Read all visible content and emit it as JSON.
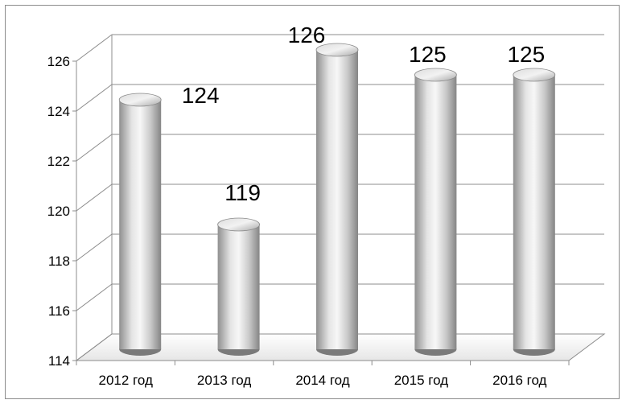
{
  "chart_data": {
    "type": "bar",
    "style": "3d-cylinder",
    "categories": [
      "2012 год",
      "2013 год",
      "2014 год",
      "2015 год",
      "2016 год"
    ],
    "values": [
      124,
      119,
      126,
      125,
      125
    ],
    "data_labels": [
      "124",
      "119",
      "126",
      "125",
      "125"
    ],
    "ylim": [
      114,
      126
    ],
    "yticks": [
      114,
      116,
      118,
      120,
      122,
      124,
      126
    ],
    "title": "",
    "xlabel": "",
    "ylabel": "",
    "grid": true,
    "legend": "none",
    "bar_color": "#c8c8c8"
  }
}
